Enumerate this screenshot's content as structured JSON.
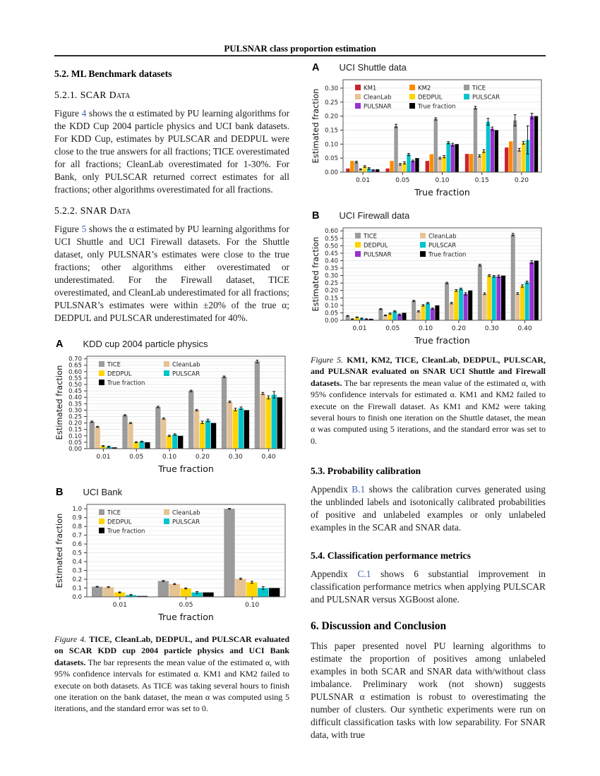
{
  "header": {
    "title": "PULSNAR class proportion estimation"
  },
  "left": {
    "s52_heading": "5.2. ML Benchmark datasets",
    "s521_heading": "5.2.1. SCAR Data",
    "para1": {
      "pre": "Figure ",
      "link": "4",
      "post": " shows the α estimated by PU learning algorithms for the KDD Cup 2004 particle physics and UCI bank datasets. For KDD Cup, estimates by PULSCAR and DEDPUL were close to the true answers for all fractions; TICE overestimated for all fractions; CleanLab overestimated for 1-30%. For Bank, only PULSCAR returned correct estimates for all fractions; other algorithms overestimated for all fractions."
    },
    "s522_heading": "5.2.2. SNAR Data",
    "para2": {
      "pre": "Figure ",
      "link": "5",
      "post": " shows the α estimated by PU learning algorithms for UCI Shuttle and UCI Firewall datasets. For the Shuttle dataset, only PULSNAR’s estimates were close to the true fractions; other algorithms either overestimated or underestimated. For the Firewall dataset, TICE overestimated, and CleanLab underestimated for all fractions; PULSNAR’s estimates were within ±20% of the true α; DEDPUL and PULSCAR underestimated for 40%."
    },
    "fig4_caption": {
      "lead": "Figure 4.",
      "bold": " TICE, CleanLab, DEDPUL, and PULSCAR evaluated on SCAR KDD cup 2004 particle physics and UCI Bank datasets.",
      "rest": " The bar represents the mean value of the estimated α, with 95% confidence intervals for estimated α. KM1 and KM2 failed to execute on both datasets. As TICE was taking several hours to finish one iteration on the bank dataset, the mean α was computed using 5 iterations, and the standard error was set to 0."
    }
  },
  "right": {
    "fig5_caption": {
      "lead": "Figure 5.",
      "bold": " KM1, KM2, TICE, CleanLab, DEDPUL, PULSCAR, and PULSNAR evaluated on SNAR UCI Shuttle and Firewall datasets.",
      "rest": " The bar represents the mean value of the estimated α, with 95% confidence intervals for estimated α. KM1 and KM2 failed to execute on the Firewall dataset. As KM1 and KM2 were taking several hours to finish one iteration on the Shuttle dataset, the mean α was computed using 5 iterations, and the standard error was set to 0."
    },
    "s53_heading": "5.3. Probability calibration",
    "para53": {
      "pre": "Appendix ",
      "link": "B.1",
      "post": " shows the calibration curves generated using the unblinded labels and isotonically calibrated probabilities of positive and unlabeled examples or only unlabeled examples in the SCAR and SNAR data."
    },
    "s54_heading": "5.4. Classification performance metrics",
    "para54": {
      "pre": "Appendix ",
      "link": "C.1",
      "post": " shows 6 substantial improvement in classification performance metrics when applying PULSCAR and PULSNAR versus XGBoost alone."
    },
    "s6_heading": "6. Discussion and Conclusion",
    "para6": "This paper presented novel PU learning algorithms to estimate the proportion of positives among unlabeled examples in both SCAR and SNAR data with/without class imbalance. Preliminary work (not shown) suggests PULSNAR α estimation is robust to overestimating the number of clusters. Our synthetic experiments were run on difficult classification tasks with low separability. For SNAR data, with true"
  },
  "chart_data": [
    {
      "type": "bar",
      "panel": "A",
      "title": "KDD cup 2004 particle physics",
      "xlabel": "True fraction",
      "ylabel": "Estimated fraction",
      "categories": [
        "0.01",
        "0.05",
        "0.10",
        "0.20",
        "0.30",
        "0.40"
      ],
      "ylim": [
        0,
        0.72
      ],
      "ytick_step": 0.05,
      "ytick_decimals": 2,
      "grid": true,
      "legend_position": "top-left",
      "legend_cols": 2,
      "series": [
        {
          "name": "TICE",
          "color": "#9b9b9b",
          "values": [
            0.21,
            0.26,
            0.325,
            0.45,
            0.56,
            0.68
          ],
          "errors": [
            0.005,
            0.005,
            0.006,
            0.006,
            0.006,
            0.01
          ]
        },
        {
          "name": "CleanLab",
          "color": "#e6c394",
          "values": [
            0.17,
            0.2,
            0.235,
            0.3,
            0.365,
            0.43
          ],
          "errors": [
            0.004,
            0.004,
            0.005,
            0.006,
            0.006,
            0.008
          ]
        },
        {
          "name": "DEDPUL",
          "color": "#ffd500",
          "values": [
            0.02,
            0.05,
            0.1,
            0.205,
            0.305,
            0.4
          ],
          "errors": [
            0.004,
            0.004,
            0.005,
            0.01,
            0.01,
            0.012
          ]
        },
        {
          "name": "PULSCAR",
          "color": "#00c4cc",
          "values": [
            0.015,
            0.055,
            0.11,
            0.22,
            0.315,
            0.42
          ],
          "errors": [
            0.004,
            0.004,
            0.006,
            0.01,
            0.01,
            0.025
          ]
        },
        {
          "name": "True fraction",
          "color": "#000000",
          "values": [
            0.01,
            0.05,
            0.1,
            0.2,
            0.3,
            0.4
          ],
          "errors": [
            0,
            0,
            0,
            0,
            0,
            0
          ]
        }
      ]
    },
    {
      "type": "bar",
      "panel": "B",
      "title": "UCI Bank",
      "xlabel": "True fraction",
      "ylabel": "Estimated fraction",
      "categories": [
        "0.01",
        "0.05",
        "0.10"
      ],
      "ylim": [
        0,
        1.05
      ],
      "ytick_step": 0.1,
      "ytick_decimals": 1,
      "grid": true,
      "legend_position": "top-left",
      "legend_cols": 2,
      "series": [
        {
          "name": "TICE",
          "color": "#9b9b9b",
          "values": [
            0.115,
            0.18,
            1.0
          ],
          "errors": [
            0.004,
            0.005,
            0.004
          ]
        },
        {
          "name": "CleanLab",
          "color": "#e6c394",
          "values": [
            0.11,
            0.145,
            0.205
          ],
          "errors": [
            0.005,
            0.006,
            0.008
          ]
        },
        {
          "name": "DEDPUL",
          "color": "#ffd500",
          "values": [
            0.05,
            0.095,
            0.165
          ],
          "errors": [
            0.006,
            0.006,
            0.012
          ]
        },
        {
          "name": "PULSCAR",
          "color": "#00c4cc",
          "values": [
            0.02,
            0.05,
            0.1
          ],
          "errors": [
            0.008,
            0.01,
            0.015
          ]
        },
        {
          "name": "True fraction",
          "color": "#000000",
          "values": [
            0.01,
            0.05,
            0.1
          ],
          "errors": [
            0,
            0,
            0
          ]
        }
      ]
    },
    {
      "type": "bar",
      "panel": "A",
      "title": "UCI Shuttle data",
      "xlabel": "True fraction",
      "ylabel": "Estimated fraction",
      "categories": [
        "0.01",
        "0.05",
        "0.10",
        "0.15",
        "0.20"
      ],
      "ylim": [
        0,
        0.33
      ],
      "ytick_step": 0.05,
      "ytick_decimals": 2,
      "grid": true,
      "legend_position": "top-left",
      "legend_cols": 3,
      "series": [
        {
          "name": "KM1",
          "color": "#c9252d",
          "values": [
            0.013,
            0.013,
            0.04,
            0.065,
            0.088
          ],
          "errors": [
            0,
            0,
            0,
            0,
            0
          ]
        },
        {
          "name": "KM2",
          "color": "#ff8c00",
          "values": [
            0.04,
            0.04,
            0.064,
            0.065,
            0.11
          ],
          "errors": [
            0,
            0,
            0,
            0,
            0
          ]
        },
        {
          "name": "TICE",
          "color": "#9b9b9b",
          "values": [
            0.036,
            0.165,
            0.19,
            0.23,
            0.185
          ],
          "errors": [
            0.003,
            0.006,
            0.004,
            0.005,
            0.02
          ]
        },
        {
          "name": "CleanLab",
          "color": "#e6c394",
          "values": [
            0.01,
            0.028,
            0.05,
            0.058,
            0.08
          ],
          "errors": [
            0.002,
            0.003,
            0.003,
            0.004,
            0.005
          ]
        },
        {
          "name": "DEDPUL",
          "color": "#ffd500",
          "values": [
            0.02,
            0.033,
            0.055,
            0.075,
            0.105
          ],
          "errors": [
            0.003,
            0.004,
            0.004,
            0.005,
            0.005
          ]
        },
        {
          "name": "PULSCAR",
          "color": "#00c4cc",
          "values": [
            0.013,
            0.063,
            0.105,
            0.18,
            0.115
          ],
          "errors": [
            0.003,
            0.004,
            0.004,
            0.012,
            0.05
          ]
        },
        {
          "name": "PULSNAR",
          "color": "#9632d2",
          "values": [
            0.007,
            0.04,
            0.098,
            0.155,
            0.2
          ],
          "errors": [
            0.002,
            0.003,
            0.005,
            0.006,
            0.01
          ]
        },
        {
          "name": "True fraction",
          "color": "#000000",
          "values": [
            0.01,
            0.05,
            0.1,
            0.15,
            0.2
          ],
          "errors": [
            0,
            0,
            0,
            0,
            0
          ]
        }
      ]
    },
    {
      "type": "bar",
      "panel": "B",
      "title": "UCI Firewall data",
      "xlabel": "True fraction",
      "ylabel": "Estimated fraction",
      "categories": [
        "0.01",
        "0.05",
        "0.10",
        "0.20",
        "0.30",
        "0.40"
      ],
      "ylim": [
        0,
        0.62
      ],
      "ytick_step": 0.05,
      "ytick_decimals": 2,
      "grid": true,
      "legend_position": "top-left",
      "legend_cols": 2,
      "series": [
        {
          "name": "TICE",
          "color": "#9b9b9b",
          "values": [
            0.03,
            0.075,
            0.13,
            0.25,
            0.37,
            0.575
          ],
          "errors": [
            0.002,
            0.003,
            0.004,
            0.005,
            0.006,
            0.008
          ]
        },
        {
          "name": "CleanLab",
          "color": "#e6c394",
          "values": [
            0.008,
            0.033,
            0.06,
            0.115,
            0.178,
            0.18
          ],
          "errors": [
            0.002,
            0.003,
            0.004,
            0.005,
            0.006,
            0.006
          ]
        },
        {
          "name": "DEDPUL",
          "color": "#ffd500",
          "values": [
            0.02,
            0.045,
            0.1,
            0.2,
            0.3,
            0.23
          ],
          "errors": [
            0.003,
            0.004,
            0.005,
            0.006,
            0.006,
            0.008
          ]
        },
        {
          "name": "PULSCAR",
          "color": "#00c4cc",
          "values": [
            0.012,
            0.06,
            0.115,
            0.21,
            0.295,
            0.255
          ],
          "errors": [
            0.003,
            0.004,
            0.005,
            0.006,
            0.006,
            0.008
          ]
        },
        {
          "name": "PULSNAR",
          "color": "#9632d2",
          "values": [
            0.008,
            0.038,
            0.078,
            0.178,
            0.295,
            0.39
          ],
          "errors": [
            0.002,
            0.004,
            0.005,
            0.008,
            0.008,
            0.01
          ]
        },
        {
          "name": "True fraction",
          "color": "#000000",
          "values": [
            0.01,
            0.05,
            0.1,
            0.2,
            0.3,
            0.4
          ],
          "errors": [
            0,
            0,
            0,
            0,
            0,
            0
          ]
        }
      ]
    }
  ]
}
